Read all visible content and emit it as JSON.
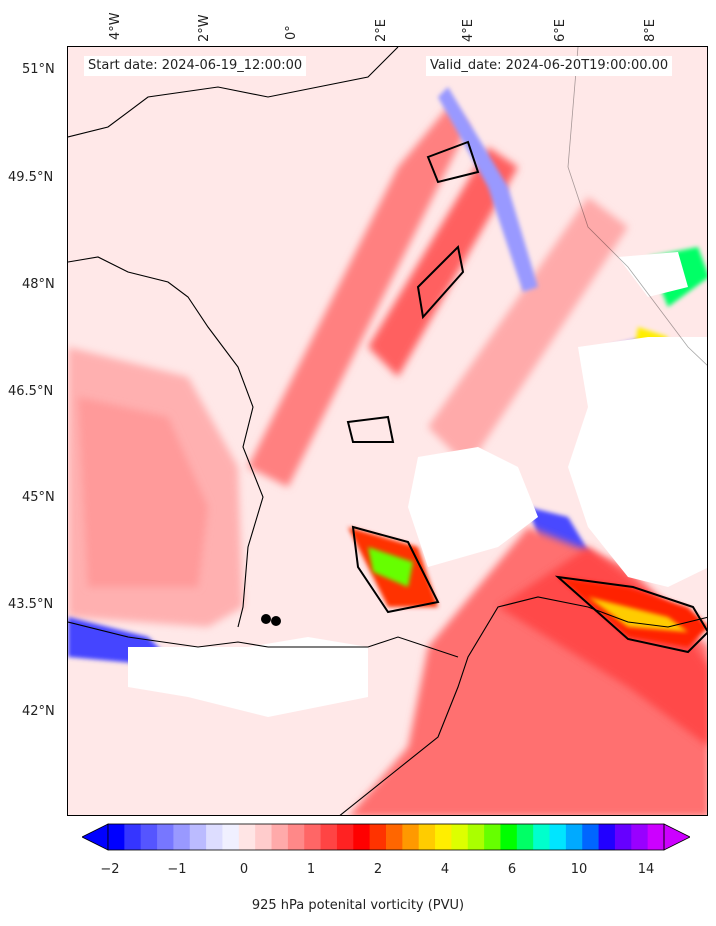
{
  "header": {
    "start_label": "Start date: 2024-06-19_12:00:00",
    "valid_label": "Valid_date: 2024-06-20T19:00:00.00"
  },
  "longitude_labels": [
    "4°W",
    "2°W",
    "0°",
    "2°E",
    "4°E",
    "6°E",
    "8°E"
  ],
  "latitude_labels": [
    "51°N",
    "49.5°N",
    "48°N",
    "46.5°N",
    "45°N",
    "43.5°N",
    "42°N"
  ],
  "colorbar": {
    "label": "925 hPa potenital vorticity (PVU)",
    "ticks": [
      "−2",
      "−1",
      "0",
      "1",
      "2",
      "4",
      "6",
      "10",
      "14"
    ],
    "colors": [
      "#0000ff",
      "#3535ff",
      "#5555ff",
      "#7777ff",
      "#9999ff",
      "#bbbbff",
      "#ddddff",
      "#f0f0ff",
      "#ffe5e5",
      "#ffcccc",
      "#ffaaaa",
      "#ff8888",
      "#ff6666",
      "#ff4444",
      "#ff2222",
      "#ff0000",
      "#ff3300",
      "#ff6600",
      "#ff9900",
      "#ffcc00",
      "#ffee00",
      "#ddff00",
      "#aaff00",
      "#66ff00",
      "#00ff00",
      "#00ff66",
      "#00ffcc",
      "#00e5ff",
      "#00aaff",
      "#0066ff",
      "#2200ff",
      "#6600ff",
      "#9900ff",
      "#cc00ff"
    ],
    "under_color": "#0000ff",
    "over_color": "#cc00ff"
  }
}
